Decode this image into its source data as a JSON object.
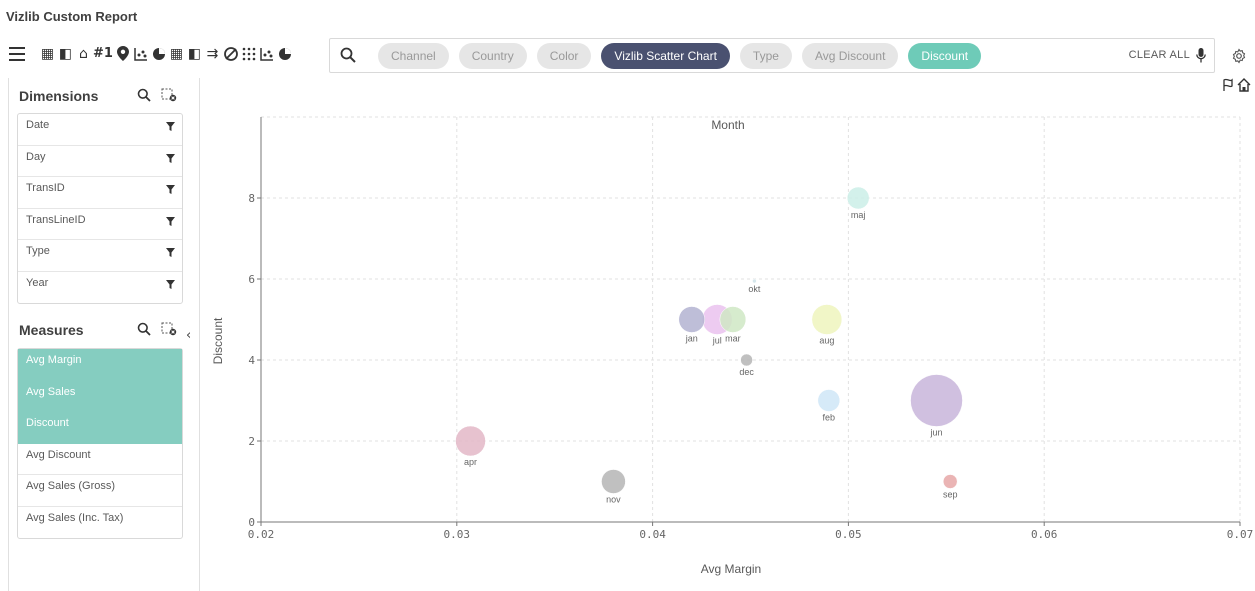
{
  "app": {
    "title": "Vizlib Custom Report"
  },
  "toolbar": {
    "menu_icon": "hamburger-icon",
    "tool_icons": [
      "table-icon",
      "pivot-icon",
      "combo-icon",
      "kpi-icon",
      "map-pin-icon",
      "scatter-icon",
      "pie-icon",
      "table-icon",
      "pivot-icon",
      "sankey-icon",
      "network-icon",
      "heatmap-icon",
      "scatter-icon",
      "pie-icon"
    ],
    "kpi_label": "#1",
    "search_chips": [
      {
        "label": "Channel",
        "state": "inactive"
      },
      {
        "label": "Country",
        "state": "inactive"
      },
      {
        "label": "Color",
        "state": "inactive"
      },
      {
        "label": "Vizlib Scatter Chart",
        "state": "dark"
      },
      {
        "label": "Type",
        "state": "inactive"
      },
      {
        "label": "Avg Discount",
        "state": "inactive"
      },
      {
        "label": "Discount",
        "state": "teal"
      }
    ],
    "clear_all": "CLEAR ALL"
  },
  "dimensions": {
    "header": "Dimensions",
    "items": [
      "Date",
      "Day",
      "TransID",
      "TransLineID",
      "Type",
      "Year"
    ]
  },
  "measures": {
    "header": "Measures",
    "items": [
      {
        "label": "Avg Margin",
        "selected": true
      },
      {
        "label": "Avg Sales",
        "selected": true
      },
      {
        "label": "Discount",
        "selected": true
      },
      {
        "label": "Avg Discount",
        "selected": false
      },
      {
        "label": "Avg Sales (Gross)",
        "selected": false
      },
      {
        "label": "Avg Sales (Inc. Tax)",
        "selected": false
      }
    ]
  },
  "chart_data": {
    "type": "scatter",
    "title": "Month",
    "xlabel": "Avg Margin",
    "ylabel": "Discount",
    "xlim": [
      0.02,
      0.07
    ],
    "ylim": [
      0,
      10
    ],
    "xticks": [
      "0.02",
      "0.03",
      "0.04",
      "0.05",
      "0.06",
      "0.07"
    ],
    "yticks": [
      "0",
      "2",
      "4",
      "6",
      "8"
    ],
    "grid": true,
    "points": [
      {
        "label": "jan",
        "x": 0.042,
        "y": 5.0,
        "size": 13,
        "color": "#b3b3d1"
      },
      {
        "label": "feb",
        "x": 0.049,
        "y": 3.0,
        "size": 11,
        "color": "#cfe6f7"
      },
      {
        "label": "mar",
        "x": 0.0441,
        "y": 5.0,
        "size": 13,
        "color": "#cfe8c4"
      },
      {
        "label": "apr",
        "x": 0.0307,
        "y": 2.0,
        "size": 15,
        "color": "#e3b7c7"
      },
      {
        "label": "maj",
        "x": 0.0505,
        "y": 8.0,
        "size": 11,
        "color": "#cbeee7"
      },
      {
        "label": "jun",
        "x": 0.0545,
        "y": 3.0,
        "size": 26,
        "color": "#c8b5db"
      },
      {
        "label": "jul",
        "x": 0.0433,
        "y": 5.0,
        "size": 15,
        "color": "#eac2ee"
      },
      {
        "label": "aug",
        "x": 0.0489,
        "y": 5.0,
        "size": 15,
        "color": "#eff5bd"
      },
      {
        "label": "sep",
        "x": 0.0552,
        "y": 1.0,
        "size": 7,
        "color": "#e6a7a7"
      },
      {
        "label": "okt",
        "x": 0.0452,
        "y": 5.95,
        "size": 2,
        "color": "#cfe3e9"
      },
      {
        "label": "nov",
        "x": 0.038,
        "y": 1.0,
        "size": 12,
        "color": "#b5b5b5"
      },
      {
        "label": "dec",
        "x": 0.0448,
        "y": 4.0,
        "size": 6,
        "color": "#b5b5b5"
      }
    ]
  }
}
